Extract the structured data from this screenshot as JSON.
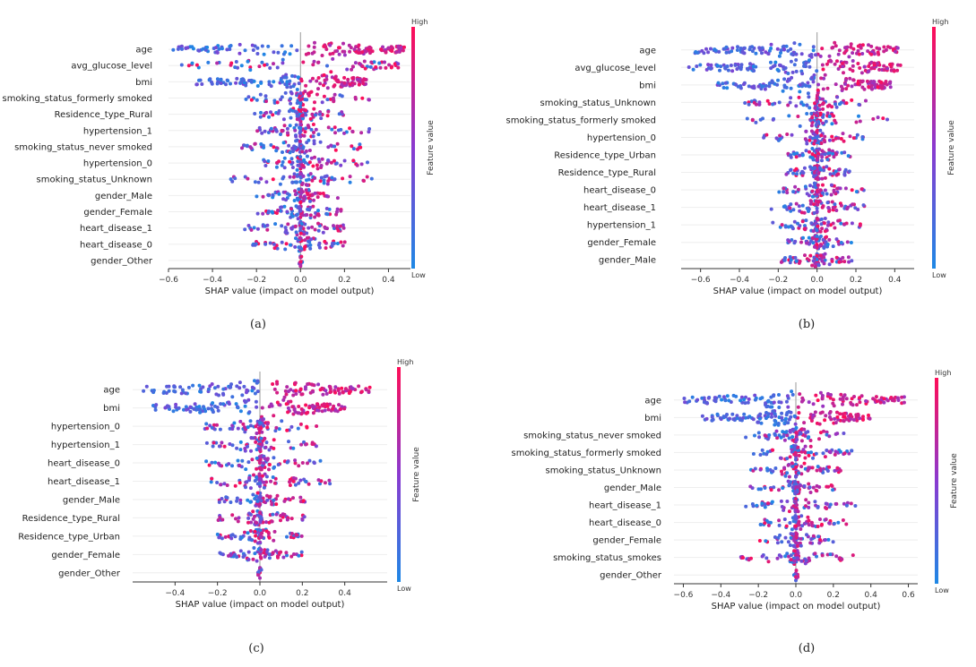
{
  "figure": {
    "legend_high": "High",
    "legend_low": "Low",
    "legend_title": "Feature value",
    "color_low": "#1e88e5",
    "color_high": "#ff0d57",
    "color_mid": "#8a3ad0",
    "x_label": "SHAP value (impact on model output)"
  },
  "chart_data": [
    {
      "type": "scatter",
      "subtype": "shap-beeswarm",
      "caption": "(a)",
      "xlabel": "SHAP value (impact on model output)",
      "xlim": [
        -0.6,
        0.5
      ],
      "xticks": [
        -0.6,
        -0.4,
        -0.2,
        0.0,
        0.2,
        0.4
      ],
      "xtick_labels": [
        "−0.6",
        "−0.4",
        "−0.2",
        "0.0",
        "0.2",
        "0.4"
      ],
      "colorbar_label": "Feature value",
      "features": [
        {
          "name": "age",
          "range": [
            -0.58,
            0.48
          ],
          "width": 1.0
        },
        {
          "name": "avg_glucose_level",
          "range": [
            -0.55,
            0.45
          ],
          "width": 0.75
        },
        {
          "name": "bmi",
          "range": [
            -0.48,
            0.3
          ],
          "width": 0.8
        },
        {
          "name": "smoking_status_formerly smoked",
          "range": [
            -0.25,
            0.32
          ],
          "width": 0.45
        },
        {
          "name": "Residence_type_Rural",
          "range": [
            -0.22,
            0.2
          ],
          "width": 0.45
        },
        {
          "name": "hypertension_1",
          "range": [
            -0.2,
            0.33
          ],
          "width": 0.4
        },
        {
          "name": "smoking_status_never smoked",
          "range": [
            -0.27,
            0.3
          ],
          "width": 0.4
        },
        {
          "name": "hypertension_0",
          "range": [
            -0.18,
            0.32
          ],
          "width": 0.45
        },
        {
          "name": "smoking_status_Unknown",
          "range": [
            -0.32,
            0.33
          ],
          "width": 0.4
        },
        {
          "name": "gender_Male",
          "range": [
            -0.2,
            0.18
          ],
          "width": 0.4
        },
        {
          "name": "gender_Female",
          "range": [
            -0.2,
            0.2
          ],
          "width": 0.4
        },
        {
          "name": "heart_disease_1",
          "range": [
            -0.26,
            0.22
          ],
          "width": 0.4
        },
        {
          "name": "heart_disease_0",
          "range": [
            -0.26,
            0.22
          ],
          "width": 0.4
        },
        {
          "name": "gender_Other",
          "range": [
            -0.01,
            0.01
          ],
          "width": 0.2
        }
      ]
    },
    {
      "type": "scatter",
      "subtype": "shap-beeswarm",
      "caption": "(b)",
      "xlabel": "SHAP value (impact on model output)",
      "xlim": [
        -0.7,
        0.5
      ],
      "xticks": [
        -0.6,
        -0.4,
        -0.2,
        0.0,
        0.2,
        0.4
      ],
      "xtick_labels": [
        "−0.6",
        "−0.4",
        "−0.2",
        "0.0",
        "0.2",
        "0.4"
      ],
      "colorbar_label": "Feature value",
      "features": [
        {
          "name": "age",
          "range": [
            -0.63,
            0.42
          ],
          "width": 1.0
        },
        {
          "name": "avg_glucose_level",
          "range": [
            -0.66,
            0.43
          ],
          "width": 0.85
        },
        {
          "name": "bmi",
          "range": [
            -0.53,
            0.38
          ],
          "width": 0.8
        },
        {
          "name": "smoking_status_Unknown",
          "range": [
            -0.38,
            0.27
          ],
          "width": 0.45
        },
        {
          "name": "smoking_status_formerly smoked",
          "range": [
            -0.38,
            0.37
          ],
          "width": 0.45
        },
        {
          "name": "hypertension_0",
          "range": [
            -0.28,
            0.3
          ],
          "width": 0.4
        },
        {
          "name": "Residence_type_Urban",
          "range": [
            -0.15,
            0.18
          ],
          "width": 0.4
        },
        {
          "name": "Residence_type_Rural",
          "range": [
            -0.18,
            0.17
          ],
          "width": 0.4
        },
        {
          "name": "heart_disease_0",
          "range": [
            -0.22,
            0.25
          ],
          "width": 0.4
        },
        {
          "name": "heart_disease_1",
          "range": [
            -0.25,
            0.27
          ],
          "width": 0.4
        },
        {
          "name": "hypertension_1",
          "range": [
            -0.23,
            0.27
          ],
          "width": 0.4
        },
        {
          "name": "gender_Female",
          "range": [
            -0.15,
            0.18
          ],
          "width": 0.4
        },
        {
          "name": "gender_Male",
          "range": [
            -0.2,
            0.18
          ],
          "width": 0.4
        }
      ]
    },
    {
      "type": "scatter",
      "subtype": "shap-beeswarm",
      "caption": "(c)",
      "xlabel": "SHAP value (impact on model output)",
      "xlim": [
        -0.6,
        0.6
      ],
      "xticks": [
        -0.4,
        -0.2,
        0.0,
        0.2,
        0.4
      ],
      "xtick_labels": [
        "−0.4",
        "−0.2",
        "0.0",
        "0.2",
        "0.4"
      ],
      "colorbar_label": "Feature value",
      "features": [
        {
          "name": "age",
          "range": [
            -0.55,
            0.52
          ],
          "width": 1.0
        },
        {
          "name": "bmi",
          "range": [
            -0.52,
            0.4
          ],
          "width": 0.85
        },
        {
          "name": "hypertension_0",
          "range": [
            -0.27,
            0.3
          ],
          "width": 0.45
        },
        {
          "name": "hypertension_1",
          "range": [
            -0.27,
            0.28
          ],
          "width": 0.45
        },
        {
          "name": "heart_disease_0",
          "range": [
            -0.28,
            0.3
          ],
          "width": 0.45
        },
        {
          "name": "heart_disease_1",
          "range": [
            -0.24,
            0.33
          ],
          "width": 0.45
        },
        {
          "name": "gender_Male",
          "range": [
            -0.2,
            0.22
          ],
          "width": 0.4
        },
        {
          "name": "Residence_type_Rural",
          "range": [
            -0.2,
            0.23
          ],
          "width": 0.4
        },
        {
          "name": "Residence_type_Urban",
          "range": [
            -0.2,
            0.2
          ],
          "width": 0.4
        },
        {
          "name": "gender_Female",
          "range": [
            -0.19,
            0.2
          ],
          "width": 0.4
        },
        {
          "name": "gender_Other",
          "range": [
            -0.01,
            0.01
          ],
          "width": 0.2
        }
      ]
    },
    {
      "type": "scatter",
      "subtype": "shap-beeswarm",
      "caption": "(d)",
      "xlabel": "SHAP value (impact on model output)",
      "xlim": [
        -0.65,
        0.65
      ],
      "xticks": [
        -0.6,
        -0.4,
        -0.2,
        0.0,
        0.2,
        0.4,
        0.6
      ],
      "xtick_labels": [
        "−0.6",
        "−0.4",
        "−0.2",
        "0.0",
        "0.2",
        "0.4",
        "0.6"
      ],
      "colorbar_label": "Feature value",
      "features": [
        {
          "name": "age",
          "range": [
            -0.6,
            0.58
          ],
          "width": 1.0
        },
        {
          "name": "bmi",
          "range": [
            -0.5,
            0.4
          ],
          "width": 0.85
        },
        {
          "name": "smoking_status_never smoked",
          "range": [
            -0.3,
            0.27
          ],
          "width": 0.45
        },
        {
          "name": "smoking_status_formerly smoked",
          "range": [
            -0.3,
            0.32
          ],
          "width": 0.45
        },
        {
          "name": "smoking_status_Unknown",
          "range": [
            -0.27,
            0.25
          ],
          "width": 0.45
        },
        {
          "name": "gender_Male",
          "range": [
            -0.25,
            0.22
          ],
          "width": 0.4
        },
        {
          "name": "heart_disease_1",
          "range": [
            -0.27,
            0.33
          ],
          "width": 0.4
        },
        {
          "name": "heart_disease_0",
          "range": [
            -0.2,
            0.28
          ],
          "width": 0.4
        },
        {
          "name": "gender_Female",
          "range": [
            -0.2,
            0.22
          ],
          "width": 0.4
        },
        {
          "name": "smoking_status_smokes",
          "range": [
            -0.3,
            0.32
          ],
          "width": 0.4
        },
        {
          "name": "gender_Other",
          "range": [
            -0.01,
            0.01
          ],
          "width": 0.2
        }
      ]
    }
  ]
}
